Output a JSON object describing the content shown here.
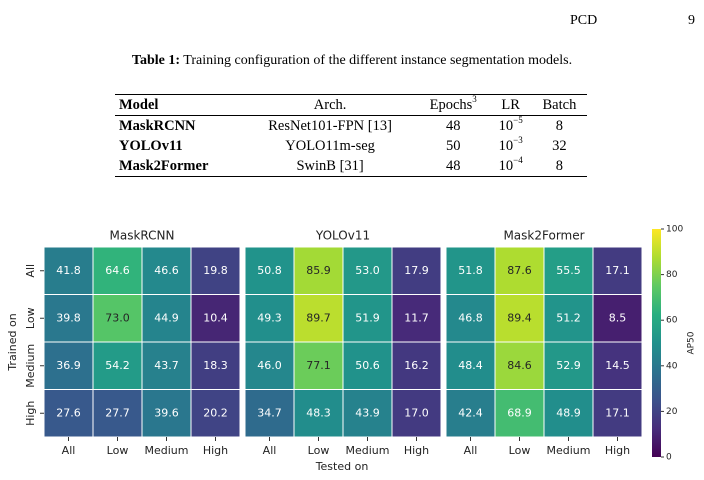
{
  "header": {
    "title": "PCD",
    "page_number": "9"
  },
  "table": {
    "caption_label": "Table 1:",
    "caption": "Training configuration of the different instance segmentation models.",
    "columns": [
      "Model",
      "Arch.",
      {
        "text": "Epochs",
        "sup": "3"
      },
      "LR",
      "Batch"
    ],
    "rows": [
      [
        "MaskRCNN",
        "ResNet101-FPN [13]",
        48,
        {
          "base": "10",
          "exp": "−5"
        },
        8
      ],
      [
        "YOLOv11",
        "YOLO11m-seg",
        50,
        {
          "base": "10",
          "exp": "−3"
        },
        32
      ],
      [
        "Mask2Former",
        "SwinB [31]",
        48,
        {
          "base": "10",
          "exp": "−4"
        },
        8
      ]
    ]
  },
  "chart_data": {
    "type": "heatmap",
    "colormap": "viridis",
    "x_categories": [
      "All",
      "Low",
      "Medium",
      "High"
    ],
    "y_categories": [
      "All",
      "Low",
      "Medium",
      "High"
    ],
    "xlabel": "Tested on",
    "ylabel": "Trained on",
    "colorbar_label": "AP50",
    "clim": [
      0,
      100
    ],
    "cticks": [
      0,
      20,
      40,
      60,
      80,
      100
    ],
    "panels": [
      {
        "title": "MaskRCNN",
        "values": [
          [
            41.8,
            64.6,
            46.6,
            19.8
          ],
          [
            39.8,
            73.0,
            44.9,
            10.4
          ],
          [
            36.9,
            54.2,
            43.7,
            18.3
          ],
          [
            27.6,
            27.7,
            39.6,
            20.2
          ]
        ],
        "value_labels": [
          [
            "41.8",
            "64.6",
            "46.6",
            "19.8"
          ],
          [
            "39.8",
            "73.0",
            "44.9",
            "10.4"
          ],
          [
            "36.9",
            "54.2",
            "43.7",
            "18.3"
          ],
          [
            "27.6",
            "27.7",
            "39.6",
            "20.2"
          ]
        ]
      },
      {
        "title": "YOLOv11",
        "values": [
          [
            50.8,
            85.9,
            53.0,
            17.9
          ],
          [
            49.3,
            89.7,
            51.9,
            11.7
          ],
          [
            46.0,
            77.1,
            50.6,
            16.2
          ],
          [
            34.7,
            48.3,
            43.9,
            17.0
          ]
        ],
        "value_labels": [
          [
            "50.8",
            "85.9",
            "53.0",
            "17.9"
          ],
          [
            "49.3",
            "89.7",
            "51.9",
            "11.7"
          ],
          [
            "46.0",
            "77.1",
            "50.6",
            "16.2"
          ],
          [
            "34.7",
            "48.3",
            "43.9",
            "17.0"
          ]
        ]
      },
      {
        "title": "Mask2Former",
        "values": [
          [
            51.8,
            87.6,
            55.5,
            17.1
          ],
          [
            46.8,
            89.4,
            51.2,
            8.5
          ],
          [
            48.4,
            84.6,
            52.9,
            14.5
          ],
          [
            42.4,
            68.9,
            48.9,
            17.1
          ]
        ],
        "value_labels": [
          [
            "51.8",
            "87.6",
            "55.5",
            "17.1"
          ],
          [
            "46.8",
            "89.4",
            "51.2",
            "8.5"
          ],
          [
            "48.4",
            "84.6",
            "52.9",
            "14.5"
          ],
          [
            "42.4",
            "68.9",
            "48.9",
            "17.1"
          ]
        ]
      }
    ]
  }
}
